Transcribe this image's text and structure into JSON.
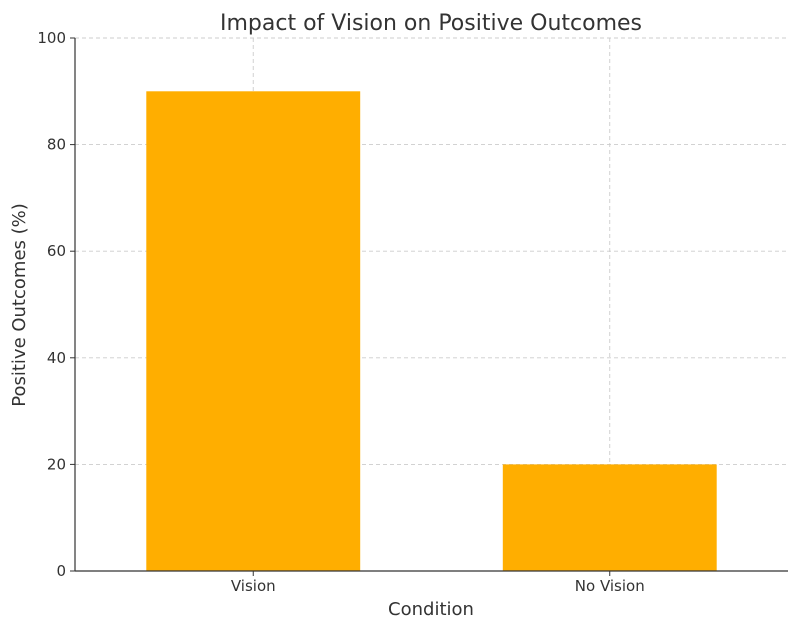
{
  "chart_data": {
    "type": "bar",
    "title": "Impact of Vision on Positive Outcomes",
    "xlabel": "Condition",
    "ylabel": "Positive Outcomes (%)",
    "categories": [
      "Vision",
      "No Vision"
    ],
    "values": [
      90,
      20
    ],
    "ylim": [
      0,
      100
    ],
    "yticks": [
      0,
      20,
      40,
      60,
      80,
      100
    ],
    "grid": true,
    "legend": "none",
    "bar_color": "#FFAE00",
    "text_color": "#333333",
    "grid_color": "#cccccc"
  }
}
